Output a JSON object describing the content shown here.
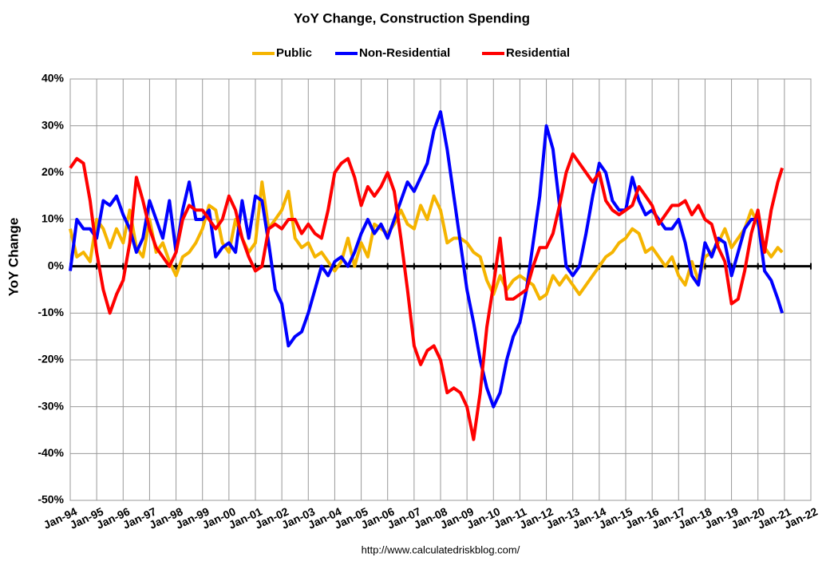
{
  "chart_data": {
    "type": "line",
    "title": "YoY Change,  Construction Spending",
    "y_label": "YoY Change",
    "source": "http://www.calculatedriskblog.com/",
    "x": [
      "Jan-94",
      "Apr-94",
      "Jul-94",
      "Oct-94",
      "Jan-95",
      "Apr-95",
      "Jul-95",
      "Oct-95",
      "Jan-96",
      "Apr-96",
      "Jul-96",
      "Oct-96",
      "Jan-97",
      "Apr-97",
      "Jul-97",
      "Oct-97",
      "Jan-98",
      "Apr-98",
      "Jul-98",
      "Oct-98",
      "Jan-99",
      "Apr-99",
      "Jul-99",
      "Oct-99",
      "Jan-00",
      "Apr-00",
      "Jul-00",
      "Oct-00",
      "Jan-01",
      "Apr-01",
      "Jul-01",
      "Oct-01",
      "Jan-02",
      "Apr-02",
      "Jul-02",
      "Oct-02",
      "Jan-03",
      "Apr-03",
      "Jul-03",
      "Oct-03",
      "Jan-04",
      "Apr-04",
      "Jul-04",
      "Oct-04",
      "Jan-05",
      "Apr-05",
      "Jul-05",
      "Oct-05",
      "Jan-06",
      "Apr-06",
      "Jul-06",
      "Oct-06",
      "Jan-07",
      "Apr-07",
      "Jul-07",
      "Oct-07",
      "Jan-08",
      "Apr-08",
      "Jul-08",
      "Oct-08",
      "Jan-09",
      "Apr-09",
      "Jul-09",
      "Oct-09",
      "Jan-10",
      "Apr-10",
      "Jul-10",
      "Oct-10",
      "Jan-11",
      "Apr-11",
      "Jul-11",
      "Oct-11",
      "Jan-12",
      "Apr-12",
      "Jul-12",
      "Oct-12",
      "Jan-13",
      "Apr-13",
      "Jul-13",
      "Oct-13",
      "Jan-14",
      "Apr-14",
      "Jul-14",
      "Oct-14",
      "Jan-15",
      "Apr-15",
      "Jul-15",
      "Oct-15",
      "Jan-16",
      "Apr-16",
      "Jul-16",
      "Oct-16",
      "Jan-17",
      "Apr-17",
      "Jul-17",
      "Oct-17",
      "Jan-18",
      "Apr-18",
      "Jul-18",
      "Oct-18",
      "Jan-19",
      "Apr-19",
      "Jul-19",
      "Oct-19",
      "Jan-20",
      "Apr-20",
      "Jul-20",
      "Oct-20",
      "Dec-20"
    ],
    "series": [
      {
        "name": "Public",
        "color": "#f5b400",
        "values": [
          8,
          2,
          3,
          1,
          10,
          8,
          4,
          8,
          5,
          12,
          4,
          2,
          10,
          3,
          5,
          1,
          -2,
          2,
          3,
          5,
          8,
          13,
          12,
          5,
          3,
          10,
          6,
          3,
          5,
          18,
          8,
          10,
          12,
          16,
          6,
          4,
          5,
          2,
          3,
          1,
          -1,
          1,
          6,
          0,
          5,
          2,
          9,
          8,
          7,
          9,
          12,
          9,
          8,
          13,
          10,
          15,
          12,
          5,
          6,
          6,
          5,
          3,
          2,
          -3,
          -6,
          -2,
          -5,
          -3,
          -2,
          -3,
          -4,
          -7,
          -6,
          -2,
          -4,
          -2,
          -4,
          -6,
          -4,
          -2,
          0,
          2,
          3,
          5,
          6,
          8,
          7,
          3,
          4,
          2,
          0,
          2,
          -2,
          -4,
          1,
          -3,
          2,
          3,
          5,
          8,
          4,
          6,
          8,
          12,
          9,
          4,
          2,
          4,
          3
        ]
      },
      {
        "name": "Non-Residential",
        "color": "#0000ff",
        "values": [
          -1,
          10,
          8,
          8,
          6,
          14,
          13,
          15,
          11,
          8,
          3,
          6,
          14,
          10,
          6,
          14,
          3,
          12,
          18,
          10,
          10,
          12,
          2,
          4,
          5,
          3,
          14,
          6,
          15,
          14,
          5,
          -5,
          -8,
          -17,
          -15,
          -14,
          -10,
          -5,
          0,
          -2,
          1,
          2,
          0,
          3,
          7,
          10,
          7,
          9,
          6,
          10,
          14,
          18,
          16,
          19,
          22,
          29,
          33,
          25,
          15,
          5,
          -5,
          -12,
          -20,
          -26,
          -30,
          -27,
          -20,
          -15,
          -12,
          -5,
          5,
          15,
          30,
          25,
          13,
          0,
          -2,
          0,
          7,
          15,
          22,
          20,
          14,
          12,
          12,
          19,
          14,
          11,
          12,
          10,
          8,
          8,
          10,
          5,
          -2,
          -4,
          5,
          2,
          6,
          5,
          -2,
          3,
          8,
          10,
          10,
          -1,
          -3,
          -7,
          -10
        ]
      },
      {
        "name": "Residential",
        "color": "#ff0000",
        "values": [
          21,
          23,
          22,
          14,
          3,
          -5,
          -10,
          -6,
          -3,
          5,
          19,
          14,
          8,
          4,
          2,
          0,
          3,
          10,
          13,
          12,
          12,
          10,
          8,
          10,
          15,
          12,
          6,
          2,
          -1,
          0,
          8,
          9,
          8,
          10,
          10,
          7,
          9,
          7,
          6,
          12,
          20,
          22,
          23,
          19,
          13,
          17,
          15,
          17,
          20,
          16,
          6,
          -5,
          -17,
          -21,
          -18,
          -17,
          -20,
          -27,
          -26,
          -27,
          -30,
          -37,
          -27,
          -13,
          -4,
          6,
          -7,
          -7,
          -6,
          -5,
          0,
          4,
          4,
          7,
          13,
          20,
          24,
          22,
          20,
          18,
          20,
          14,
          12,
          11,
          12,
          13,
          17,
          15,
          13,
          9,
          11,
          13,
          13,
          14,
          11,
          13,
          10,
          9,
          4,
          1,
          -8,
          -7,
          -1,
          7,
          12,
          3,
          12,
          18,
          21
        ]
      }
    ],
    "xlim": [
      "Jan-94",
      "Jan-22"
    ],
    "xticks": [
      "Jan-94",
      "Jan-95",
      "Jan-96",
      "Jan-97",
      "Jan-98",
      "Jan-99",
      "Jan-00",
      "Jan-01",
      "Jan-02",
      "Jan-03",
      "Jan-04",
      "Jan-05",
      "Jan-06",
      "Jan-07",
      "Jan-08",
      "Jan-09",
      "Jan-10",
      "Jan-11",
      "Jan-12",
      "Jan-13",
      "Jan-14",
      "Jan-15",
      "Jan-16",
      "Jan-17",
      "Jan-18",
      "Jan-19",
      "Jan-20",
      "Jan-21",
      "Jan-22"
    ],
    "ylim": [
      -50,
      40
    ],
    "yticks": [
      {
        "value": -50,
        "label": "-50%"
      },
      {
        "value": -40,
        "label": "-40%"
      },
      {
        "value": -30,
        "label": "-30%"
      },
      {
        "value": -20,
        "label": "-20%"
      },
      {
        "value": -10,
        "label": "-10%"
      },
      {
        "value": 0,
        "label": "0%"
      },
      {
        "value": 10,
        "label": "10%"
      },
      {
        "value": 20,
        "label": "20%"
      },
      {
        "value": 30,
        "label": "30%"
      },
      {
        "value": 40,
        "label": "40%"
      }
    ],
    "grid": true,
    "legend": "top"
  }
}
